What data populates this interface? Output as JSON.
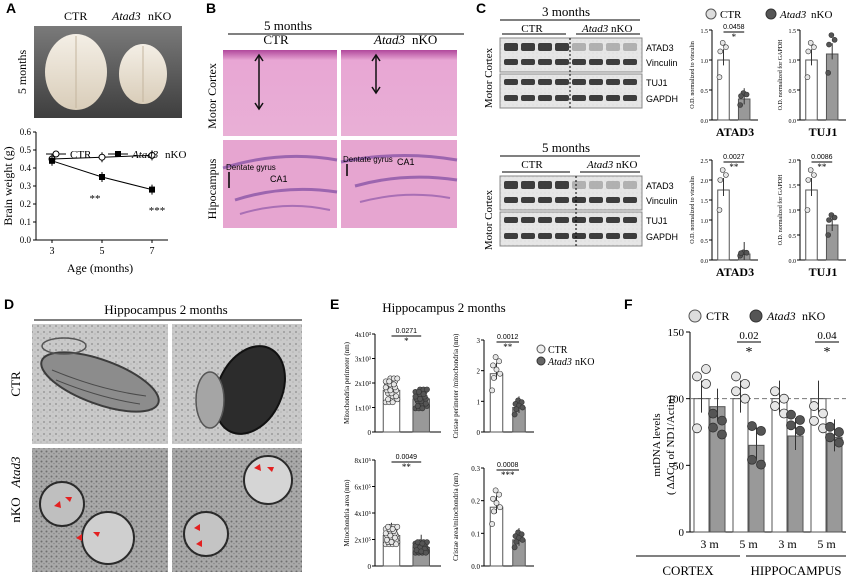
{
  "panelA": {
    "letter": "A",
    "ctr_label": "CTR",
    "nko_gene": "Atad3",
    "nko_suffix": " nKO",
    "side_label": "5 months",
    "chart_data": {
      "type": "line",
      "xlabel": "Age (months)",
      "ylabel": "Brain weight (g)",
      "x": [
        3,
        5,
        7
      ],
      "ylim": [
        0.0,
        0.6
      ],
      "yticks": [
        "0.0",
        "0.1",
        "0.2",
        "0.3",
        "0.4",
        "0.5",
        "0.6"
      ],
      "series": [
        {
          "name": "CTR",
          "values": [
            0.45,
            0.46,
            0.47
          ],
          "marker": "open-circle"
        },
        {
          "name": "Atad3 nKO",
          "values": [
            0.44,
            0.35,
            0.28
          ],
          "marker": "filled-square"
        }
      ],
      "annotations": [
        "**",
        "***"
      ]
    },
    "legend_ctr": "CTR",
    "legend_nko_gene": "Atad3",
    "legend_nko_suffix": " nKO"
  },
  "panelB": {
    "letter": "B",
    "title": "5 months",
    "ctr_label": "CTR",
    "nko_gene": "Atad3",
    "nko_suffix": " nKO",
    "row1": "Motor Cortex",
    "row2": "Hipocampus",
    "dentate_label": "Dentate gyrus",
    "ca1_label": "CA1"
  },
  "panelC": {
    "letter": "C",
    "top_title": "3 months",
    "bottom_title": "5 months",
    "ctr_label": "CTR",
    "nko_gene": "Atad3",
    "nko_suffix": " nKO",
    "side_label": "Motor Cortex",
    "blot_labels": [
      "ATAD3",
      "Vinculin",
      "TUJ1",
      "GAPDH"
    ],
    "legend_ctr": "CTR",
    "legend_nko_gene": "Atad3",
    "legend_nko_suffix": " nKO",
    "charts": [
      {
        "type": "bar",
        "title": "ATAD3",
        "ylabel": "O.D. normalized to vinculin",
        "ylim": [
          0.0,
          1.5
        ],
        "yticks": [
          "0.0",
          "0.5",
          "1.0",
          "1.5"
        ],
        "categories": [
          "CTR",
          "Atad3 nKO"
        ],
        "values": [
          1.0,
          0.35
        ],
        "pval": "0.0458",
        "stars": "*"
      },
      {
        "type": "bar",
        "title": "TUJ1",
        "ylabel": "O.D. normalized for GAPDH",
        "ylim": [
          0.0,
          1.5
        ],
        "yticks": [
          "0.0",
          "0.5",
          "1.0",
          "1.5"
        ],
        "categories": [
          "CTR",
          "Atad3 nKO"
        ],
        "values": [
          1.0,
          1.1
        ],
        "pval": "",
        "stars": ""
      },
      {
        "type": "bar",
        "title": "ATAD3",
        "ylabel": "O.D. normalized to vinculin",
        "ylim": [
          0.0,
          2.5
        ],
        "yticks": [
          "0.0",
          "0.5",
          "1.0",
          "1.5",
          "2.0",
          "2.5"
        ],
        "categories": [
          "CTR",
          "Atad3 nKO"
        ],
        "values": [
          1.75,
          0.15
        ],
        "pval": "0.0027",
        "stars": "**"
      },
      {
        "type": "bar",
        "title": "TUJ1",
        "ylabel": "O.D. normalized for GAPDH",
        "ylim": [
          0.0,
          2.0
        ],
        "yticks": [
          "0.0",
          "0.5",
          "1.0",
          "1.5",
          "2.0"
        ],
        "categories": [
          "CTR",
          "Atad3 nKO"
        ],
        "values": [
          1.4,
          0.7
        ],
        "pval": "0.0086",
        "stars": "**"
      }
    ]
  },
  "panelD": {
    "letter": "D",
    "title": "Hippocampus 2 months",
    "row1": "CTR",
    "row2_gene": "Atad3",
    "row2_suffix": " nKO"
  },
  "panelE": {
    "letter": "E",
    "title": "Hippocampus 2 months",
    "legend_ctr": "CTR",
    "legend_nko_gene": "Atad3",
    "legend_nko_suffix": " nKO",
    "charts": [
      {
        "type": "bar",
        "ylabel": "Mitochondria perimeter (nm)",
        "yticks": [
          "0",
          "1x10³",
          "2x10³",
          "3x10³",
          "4x10³"
        ],
        "ylim": [
          0,
          4000
        ],
        "categories": [
          "CTR",
          "Atad3 nKO"
        ],
        "values": [
          1700,
          1350
        ],
        "pval": "0.0271",
        "stars": "*"
      },
      {
        "type": "bar",
        "ylabel": "Cristae perimeter /mitochondria (nm)",
        "yticks": [
          "0",
          "1",
          "2",
          "3"
        ],
        "ylim": [
          0,
          3
        ],
        "categories": [
          "CTR",
          "Atad3 nKO"
        ],
        "values": [
          1.9,
          0.8
        ],
        "pval": "0.0012",
        "stars": "**"
      },
      {
        "type": "bar",
        "ylabel": "Mitochondria area (nm)",
        "yticks": [
          "0",
          "2x10⁵",
          "4x10⁵",
          "6x10⁵",
          "8x10⁵"
        ],
        "ylim": [
          0,
          800000
        ],
        "categories": [
          "CTR",
          "Atad3 nKO"
        ],
        "values": [
          230000,
          140000
        ],
        "pval": "0.0049",
        "stars": "**"
      },
      {
        "type": "bar",
        "ylabel": "Cristae area/mitochondria (nm)",
        "yticks": [
          "0.0",
          "0.1",
          "0.2",
          "0.3"
        ],
        "ylim": [
          0,
          0.3
        ],
        "categories": [
          "CTR",
          "Atad3 nKO"
        ],
        "values": [
          0.18,
          0.08
        ],
        "pval": "0.0008",
        "stars": "***"
      }
    ]
  },
  "panelF": {
    "letter": "F",
    "legend_ctr": "CTR",
    "legend_nko_gene": "Atad3",
    "legend_nko_suffix": " nKO",
    "region1": "CORTEX",
    "region2": "HIPPOCAMPUS",
    "chart_data": {
      "type": "bar",
      "ylabel": "mtDNA levels",
      "ylabel2": "( ΔΔCq of ND1/Actin)",
      "ylim": [
        0,
        150
      ],
      "yticks": [
        "0",
        "50",
        "100",
        "150"
      ],
      "categories": [
        "3 m",
        "5 m",
        "3 m",
        "5 m"
      ],
      "series": [
        {
          "name": "CTR",
          "values": [
            100,
            100,
            100,
            100
          ]
        },
        {
          "name": "Atad3 nKO",
          "values": [
            94,
            65,
            72,
            71
          ]
        }
      ],
      "reference_line": 100,
      "pvals": [
        "",
        "0.02",
        "",
        "0.04"
      ],
      "stars": [
        "",
        "*",
        "",
        "*"
      ]
    }
  }
}
